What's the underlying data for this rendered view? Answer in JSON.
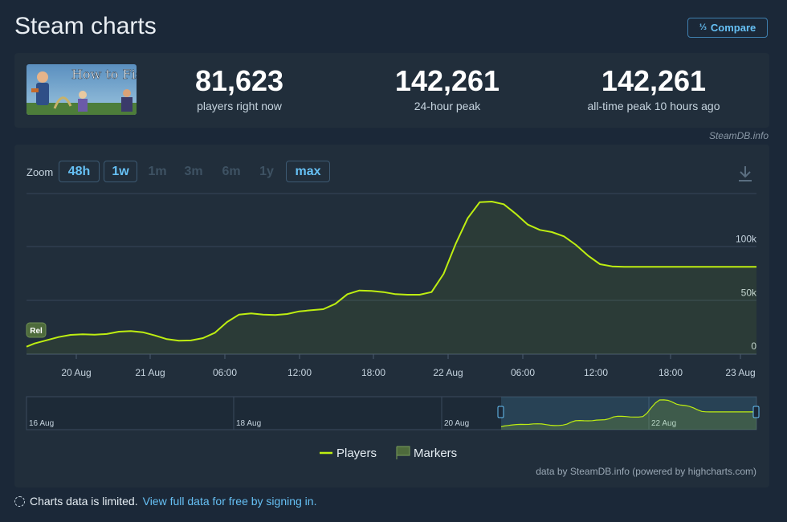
{
  "header": {
    "title": "Steam charts",
    "compare_label": "Compare",
    "compare_icon": "fraction-icon"
  },
  "stats": [
    {
      "value": "81,623",
      "label": "players right now"
    },
    {
      "value": "142,261",
      "label": "24-hour peak"
    },
    {
      "value": "142,261",
      "label": "all-time peak 10 hours ago"
    }
  ],
  "game": {
    "title_art": "How to Fish"
  },
  "attribution_top": "SteamDB.info",
  "zoom": {
    "label": "Zoom",
    "buttons": [
      {
        "label": "48h",
        "active": true
      },
      {
        "label": "1w",
        "active": true
      },
      {
        "label": "1m",
        "active": false
      },
      {
        "label": "3m",
        "active": false
      },
      {
        "label": "6m",
        "active": false
      },
      {
        "label": "1y",
        "active": false
      },
      {
        "label": "max",
        "active": true
      }
    ]
  },
  "chart_data": {
    "type": "area",
    "ylim": [
      0,
      150000
    ],
    "y_ticks": [
      {
        "v": 0,
        "label": "0"
      },
      {
        "v": 50000,
        "label": "50k"
      },
      {
        "v": 100000,
        "label": "100k"
      }
    ],
    "x_ticks": [
      "20 Aug",
      "21 Aug",
      "06:00",
      "12:00",
      "18:00",
      "22 Aug",
      "06:00",
      "12:00",
      "18:00",
      "23 Aug"
    ],
    "series": [
      {
        "name": "Players",
        "color": "#beee11",
        "x_hours": [
          0,
          2,
          5,
          8,
          11,
          14,
          17,
          20,
          23,
          26,
          29,
          32,
          35,
          38,
          41,
          44,
          47,
          50,
          53,
          56,
          59,
          62,
          65,
          68,
          71,
          74,
          77,
          80,
          83,
          86,
          89,
          92,
          95,
          98,
          101,
          104,
          107,
          110,
          113,
          116,
          119,
          122,
          125,
          128,
          131,
          134,
          137,
          140,
          143,
          146,
          149,
          152,
          155,
          158,
          161,
          164,
          167,
          170,
          173,
          176,
          179,
          182
        ],
        "values": [
          7000,
          10000,
          13000,
          16000,
          18000,
          18500,
          18200,
          18800,
          21000,
          21500,
          20500,
          17500,
          14000,
          12500,
          12800,
          15000,
          20000,
          30000,
          37000,
          38000,
          37000,
          36500,
          37500,
          40000,
          41000,
          42000,
          47000,
          56000,
          59500,
          59000,
          58000,
          56000,
          55500,
          55500,
          58000,
          75000,
          103000,
          127000,
          142000,
          142500,
          140000,
          131000,
          121000,
          116000,
          114000,
          110000,
          102000,
          92000,
          84000,
          82000,
          81623,
          81623,
          81623,
          81623,
          81623,
          81623,
          81623,
          81623,
          81623,
          81623,
          81623,
          81623
        ]
      }
    ],
    "legend": [
      {
        "label": "Players",
        "color": "#beee11"
      },
      {
        "label": "Markers",
        "color": "#4e6b3c"
      }
    ],
    "release_marker": "Rel",
    "navigator_labels": [
      "16 Aug",
      "18 Aug",
      "20 Aug",
      "22 Aug"
    ],
    "credit": "data by SteamDB.info (powered by highcharts.com)"
  },
  "footer": {
    "text": "Charts data is limited.",
    "link": "View full data for free by signing in."
  }
}
